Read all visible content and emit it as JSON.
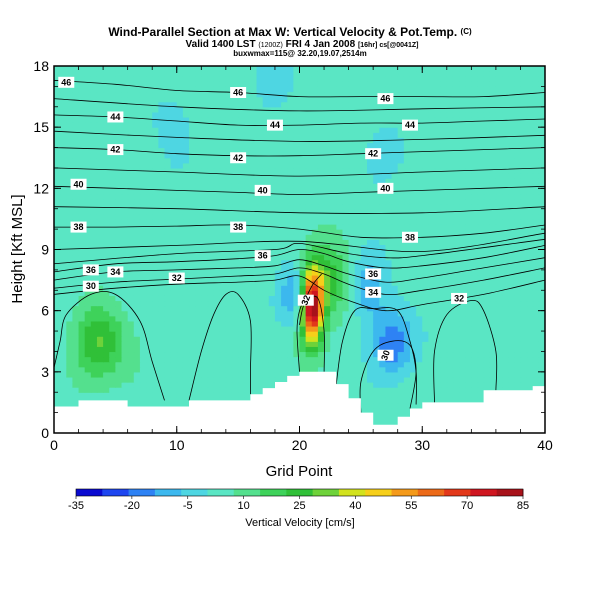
{
  "header": {
    "title": "Wind-Parallel Section at Max W: Vertical Velocity & Pot.Temp.",
    "title_mark": "(C)",
    "valid": "Valid 1400 LST",
    "valid_small": "(1200Z)",
    "valid_date": "FRI 4 Jan 2008",
    "valid_suffix": "[16hr] cs[@0041Z]",
    "sub": "buxwmax=115@ 32.20,19.07,2514m"
  },
  "chart_data": {
    "type": "heatmap",
    "xlabel": "Grid Point",
    "ylabel": "Height [Kft MSL]",
    "xlim": [
      0,
      40
    ],
    "ylim": [
      0,
      18
    ],
    "x_ticks": [
      "0",
      "10",
      "20",
      "30",
      "40"
    ],
    "y_ticks": [
      "0",
      "3",
      "6",
      "9",
      "12",
      "15",
      "18"
    ],
    "colorbar": {
      "label": "Vertical Velocity [cm/s]",
      "tick_labels": [
        "-35",
        "-20",
        "-5",
        "10",
        "25",
        "40",
        "55",
        "70",
        "85"
      ],
      "colors": [
        "#0a0ad0",
        "#1e46f0",
        "#2e82f4",
        "#3cb8ee",
        "#4ed6e2",
        "#5ae6c4",
        "#54e08e",
        "#3ed25a",
        "#30c038",
        "#6ed23a",
        "#d2e21e",
        "#f6cf1a",
        "#f49a1a",
        "#ec6a18",
        "#e2381a",
        "#cf1620",
        "#a8121a"
      ]
    },
    "field": {
      "quantity": "vertical velocity",
      "units": "cm/s",
      "background": 4,
      "features": [
        {
          "kind": "updraft",
          "x": 21,
          "y": 6.2,
          "peak": 85
        },
        {
          "kind": "updraft",
          "x": 3.5,
          "y": 4.5,
          "peak": 30
        },
        {
          "kind": "updraft",
          "x": 22,
          "y": 7.5,
          "peak": 30
        },
        {
          "kind": "downdraft",
          "x": 19.8,
          "y": 6.8,
          "peak": -18
        },
        {
          "kind": "downdraft",
          "x": 27.5,
          "y": 4.4,
          "peak": -20
        },
        {
          "kind": "downdraft",
          "x": 25.5,
          "y": 7.2,
          "peak": -15
        },
        {
          "kind": "downdraft",
          "x": 18,
          "y": 17.5,
          "peak": -8
        },
        {
          "kind": "downdraft",
          "x": 27,
          "y": 14,
          "peak": -6
        },
        {
          "kind": "downdraft",
          "x": 10,
          "y": 14.5,
          "peak": -4
        }
      ]
    },
    "terrain": [
      {
        "x": 0,
        "y": 1.3
      },
      {
        "x": 1,
        "y": 1.3
      },
      {
        "x": 2,
        "y": 1.6
      },
      {
        "x": 5,
        "y": 1.6
      },
      {
        "x": 6,
        "y": 1.3
      },
      {
        "x": 10,
        "y": 1.3
      },
      {
        "x": 11,
        "y": 1.6
      },
      {
        "x": 15,
        "y": 1.6
      },
      {
        "x": 16,
        "y": 1.9
      },
      {
        "x": 17,
        "y": 2.2
      },
      {
        "x": 18,
        "y": 2.5
      },
      {
        "x": 19,
        "y": 2.8
      },
      {
        "x": 20,
        "y": 3.0
      },
      {
        "x": 22,
        "y": 3.0
      },
      {
        "x": 23,
        "y": 2.4
      },
      {
        "x": 24,
        "y": 1.7
      },
      {
        "x": 25,
        "y": 1.0
      },
      {
        "x": 26,
        "y": 0.4
      },
      {
        "x": 27,
        "y": 0.4
      },
      {
        "x": 28,
        "y": 0.8
      },
      {
        "x": 29,
        "y": 1.2
      },
      {
        "x": 30,
        "y": 1.5
      },
      {
        "x": 33,
        "y": 1.5
      },
      {
        "x": 35,
        "y": 2.1
      },
      {
        "x": 38,
        "y": 2.1
      },
      {
        "x": 39,
        "y": 2.3
      },
      {
        "x": 40,
        "y": 2.3
      }
    ],
    "isentropes": [
      {
        "label": "30",
        "points": [
          [
            0,
            6.8
          ],
          [
            5,
            7.1
          ],
          [
            10,
            7.3
          ],
          [
            15,
            7.4
          ],
          [
            18,
            7.5
          ],
          [
            20,
            7.7
          ],
          [
            22,
            7.0
          ],
          [
            24,
            6.5
          ],
          [
            27,
            6.0
          ],
          [
            30,
            6.3
          ],
          [
            35,
            6.8
          ],
          [
            40,
            7.5
          ]
        ],
        "label_at": [
          [
            3,
            7.2
          ]
        ]
      },
      {
        "label": "32",
        "points": [
          [
            0,
            7.1
          ],
          [
            5,
            7.4
          ],
          [
            10,
            7.55
          ],
          [
            15,
            7.7
          ],
          [
            18,
            7.8
          ],
          [
            20,
            8.1
          ],
          [
            22,
            7.8
          ],
          [
            24,
            7.3
          ],
          [
            27,
            6.8
          ],
          [
            30,
            7.0
          ],
          [
            35,
            7.5
          ],
          [
            40,
            8.1
          ]
        ],
        "label_at": [
          [
            10,
            7.6
          ],
          [
            33,
            6.6
          ]
        ]
      },
      {
        "label": "34",
        "points": [
          [
            0,
            7.5
          ],
          [
            5,
            7.9
          ],
          [
            10,
            8.0
          ],
          [
            15,
            8.1
          ],
          [
            18,
            8.2
          ],
          [
            20,
            8.5
          ],
          [
            22,
            8.2
          ],
          [
            24,
            7.8
          ],
          [
            27,
            7.4
          ],
          [
            30,
            7.6
          ],
          [
            35,
            8.1
          ],
          [
            40,
            8.6
          ]
        ],
        "label_at": [
          [
            5,
            7.9
          ],
          [
            26,
            6.9
          ]
        ]
      },
      {
        "label": "36",
        "points": [
          [
            0,
            7.9
          ],
          [
            5,
            8.3
          ],
          [
            10,
            8.4
          ],
          [
            15,
            8.55
          ],
          [
            18,
            8.7
          ],
          [
            20,
            9.0
          ],
          [
            22,
            8.8
          ],
          [
            24,
            8.4
          ],
          [
            27,
            8.1
          ],
          [
            30,
            8.2
          ],
          [
            35,
            8.6
          ],
          [
            40,
            9.2
          ]
        ],
        "label_at": [
          [
            3,
            8.0
          ],
          [
            17,
            8.7
          ],
          [
            26,
            7.8
          ]
        ]
      },
      {
        "label": "38",
        "points": [
          [
            0,
            10.1
          ],
          [
            5,
            10.1
          ],
          [
            10,
            10.15
          ],
          [
            15,
            10.2
          ],
          [
            20,
            10.0
          ],
          [
            25,
            9.6
          ],
          [
            30,
            9.6
          ],
          [
            35,
            9.8
          ],
          [
            40,
            10.2
          ]
        ],
        "label_at": [
          [
            2,
            10.1
          ],
          [
            15,
            10.1
          ],
          [
            29,
            9.6
          ]
        ]
      },
      {
        "label": "40",
        "points": [
          [
            0,
            12.1
          ],
          [
            5,
            12.0
          ],
          [
            10,
            11.9
          ],
          [
            15,
            11.8
          ],
          [
            20,
            11.7
          ],
          [
            25,
            11.8
          ],
          [
            30,
            11.9
          ],
          [
            35,
            12.0
          ],
          [
            40,
            12.1
          ]
        ],
        "label_at": [
          [
            2,
            12.2
          ],
          [
            17,
            11.9
          ],
          [
            27,
            12.0
          ]
        ]
      },
      {
        "label": "42",
        "points": [
          [
            0,
            14.0
          ],
          [
            5,
            13.9
          ],
          [
            10,
            13.7
          ],
          [
            15,
            13.6
          ],
          [
            20,
            13.6
          ],
          [
            25,
            13.7
          ],
          [
            30,
            13.8
          ],
          [
            35,
            13.9
          ],
          [
            40,
            14.0
          ]
        ],
        "label_at": [
          [
            5,
            13.9
          ],
          [
            15,
            13.5
          ],
          [
            26,
            13.7
          ]
        ]
      },
      {
        "label": "44",
        "points": [
          [
            0,
            15.6
          ],
          [
            5,
            15.5
          ],
          [
            10,
            15.3
          ],
          [
            15,
            15.1
          ],
          [
            20,
            15.1
          ],
          [
            25,
            15.2
          ],
          [
            30,
            15.2
          ],
          [
            35,
            15.3
          ],
          [
            40,
            15.4
          ]
        ],
        "label_at": [
          [
            5,
            15.5
          ],
          [
            18,
            15.1
          ],
          [
            29,
            15.1
          ]
        ]
      },
      {
        "label": "46",
        "points": [
          [
            0,
            17.3
          ],
          [
            5,
            17.1
          ],
          [
            10,
            16.8
          ],
          [
            15,
            16.7
          ],
          [
            20,
            16.5
          ],
          [
            25,
            16.5
          ],
          [
            30,
            16.5
          ],
          [
            35,
            16.5
          ],
          [
            40,
            16.7
          ]
        ],
        "label_at": [
          [
            1,
            17.2
          ],
          [
            15,
            16.7
          ],
          [
            27,
            16.4
          ]
        ]
      },
      {
        "label": "",
        "points": [
          [
            0,
            8.3
          ],
          [
            10,
            8.8
          ],
          [
            18,
            9.0
          ],
          [
            20,
            9.3
          ],
          [
            24,
            8.8
          ],
          [
            27,
            8.6
          ],
          [
            30,
            8.7
          ],
          [
            40,
            9.5
          ]
        ],
        "label_at": []
      },
      {
        "label": "",
        "points": [
          [
            0,
            16.4
          ],
          [
            10,
            16.0
          ],
          [
            20,
            15.8
          ],
          [
            30,
            15.9
          ],
          [
            40,
            16.0
          ]
        ],
        "label_at": []
      },
      {
        "label": "",
        "points": [
          [
            0,
            11.1
          ],
          [
            10,
            11.0
          ],
          [
            20,
            10.8
          ],
          [
            30,
            10.8
          ],
          [
            40,
            11.1
          ]
        ],
        "label_at": []
      },
      {
        "label": "",
        "points": [
          [
            0,
            13.0
          ],
          [
            10,
            12.8
          ],
          [
            20,
            12.6
          ],
          [
            30,
            12.8
          ],
          [
            40,
            13.0
          ]
        ],
        "label_at": []
      },
      {
        "label": "",
        "points": [
          [
            0,
            9.0
          ],
          [
            10,
            9.2
          ],
          [
            20,
            9.4
          ],
          [
            30,
            8.9
          ],
          [
            40,
            9.8
          ]
        ],
        "label_at": []
      },
      {
        "label": "",
        "points": [
          [
            0,
            14.8
          ],
          [
            10,
            14.5
          ],
          [
            20,
            14.3
          ],
          [
            30,
            14.4
          ],
          [
            40,
            14.6
          ]
        ],
        "label_at": []
      }
    ],
    "low_contours": [
      {
        "label": "",
        "points": [
          [
            0,
            3.2
          ],
          [
            0.5,
            4.5
          ],
          [
            1,
            5.8
          ],
          [
            3,
            6.8
          ],
          [
            5,
            6.8
          ],
          [
            7,
            5.5
          ],
          [
            8,
            3.5
          ],
          [
            9,
            1.6
          ]
        ]
      },
      {
        "label": "",
        "points": [
          [
            11,
            1.6
          ],
          [
            12,
            4
          ],
          [
            13,
            5.8
          ],
          [
            14,
            6.8
          ],
          [
            15,
            6.8
          ],
          [
            16,
            5.5
          ],
          [
            16,
            3
          ],
          [
            16,
            1.9
          ]
        ]
      },
      {
        "label": "",
        "points": [
          [
            23,
            2.4
          ],
          [
            23.5,
            4.5
          ],
          [
            24.5,
            6
          ],
          [
            26,
            6.1
          ],
          [
            28,
            6.0
          ],
          [
            29,
            4.5
          ],
          [
            29.5,
            3
          ],
          [
            29.5,
            1.4
          ]
        ]
      },
      {
        "label": "30",
        "points": [
          [
            25,
            1.0
          ],
          [
            25,
            2.5
          ],
          [
            26,
            4
          ],
          [
            27.5,
            4.5
          ],
          [
            29,
            4.3
          ],
          [
            29.5,
            3
          ],
          [
            29,
            1.2
          ]
        ]
      },
      {
        "label": "",
        "points": [
          [
            31,
            1.5
          ],
          [
            31,
            4
          ],
          [
            32,
            5.8
          ],
          [
            34,
            6.5
          ],
          [
            35,
            6
          ],
          [
            36,
            4
          ],
          [
            36,
            2.1
          ]
        ]
      },
      {
        "label": "",
        "points": [
          [
            20,
            3.0
          ],
          [
            19.8,
            5
          ],
          [
            20,
            6
          ],
          [
            20.5,
            6.5
          ],
          [
            21.5,
            6.6
          ],
          [
            22,
            5
          ],
          [
            22,
            3.0
          ]
        ]
      },
      {
        "label": "32",
        "points": [
          [
            20,
            5.3
          ],
          [
            20.3,
            6.2
          ],
          [
            21,
            7.2
          ],
          [
            21.8,
            7.8
          ]
        ]
      }
    ]
  }
}
